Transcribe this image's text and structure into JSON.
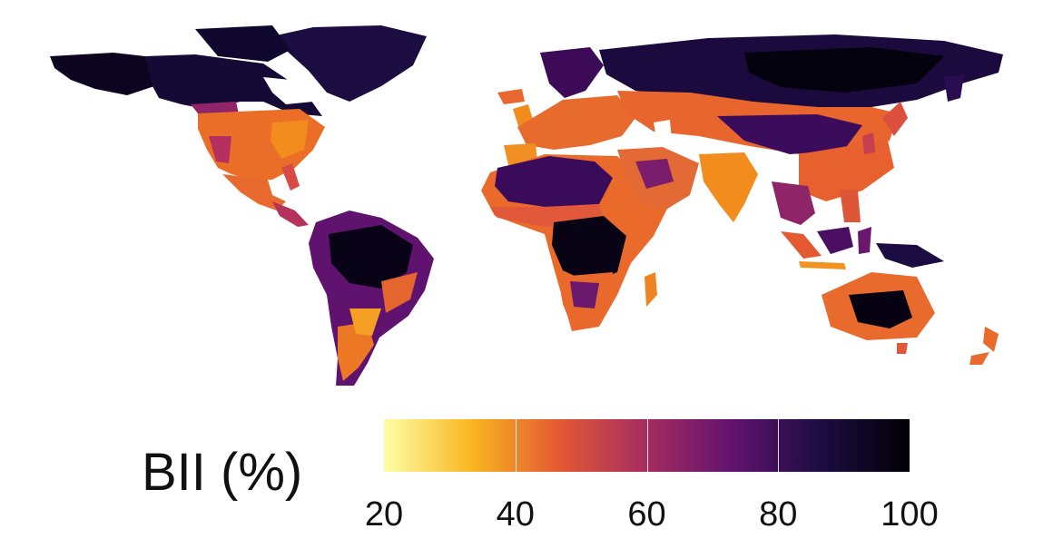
{
  "map": {
    "variable": "BII (%)",
    "scale": {
      "palette": "inferno",
      "min": 20,
      "max": 100,
      "stops": [
        "#fcffa4",
        "#f9b621",
        "#e35933",
        "#a52c60",
        "#5f126e",
        "#1b0c41",
        "#000004"
      ]
    },
    "regions": [
      {
        "name": "Boreal North America / Arctic",
        "bii": 97
      },
      {
        "name": "Eastern USA / Great Plains",
        "bii": 48
      },
      {
        "name": "Central America",
        "bii": 58
      },
      {
        "name": "Amazon basin",
        "bii": 95
      },
      {
        "name": "Southern South America",
        "bii": 45
      },
      {
        "name": "Europe",
        "bii": 50
      },
      {
        "name": "Siberia",
        "bii": 92
      },
      {
        "name": "Central Asia",
        "bii": 60
      },
      {
        "name": "Tibetan Plateau / Mongolia",
        "bii": 82
      },
      {
        "name": "India / China",
        "bii": 45
      },
      {
        "name": "Sahara",
        "bii": 82
      },
      {
        "name": "Middle East",
        "bii": 52
      },
      {
        "name": "Congo basin",
        "bii": 92
      },
      {
        "name": "Southern Africa",
        "bii": 50
      },
      {
        "name": "Southeast Asia",
        "bii": 70
      },
      {
        "name": "Interior Australia",
        "bii": 95
      },
      {
        "name": "Coastal Australia",
        "bii": 50
      }
    ]
  },
  "legend": {
    "title": "BII (%)",
    "ticks": [
      "20",
      "40",
      "60",
      "80",
      "100"
    ],
    "tick_values": [
      20,
      40,
      60,
      80,
      100
    ]
  }
}
